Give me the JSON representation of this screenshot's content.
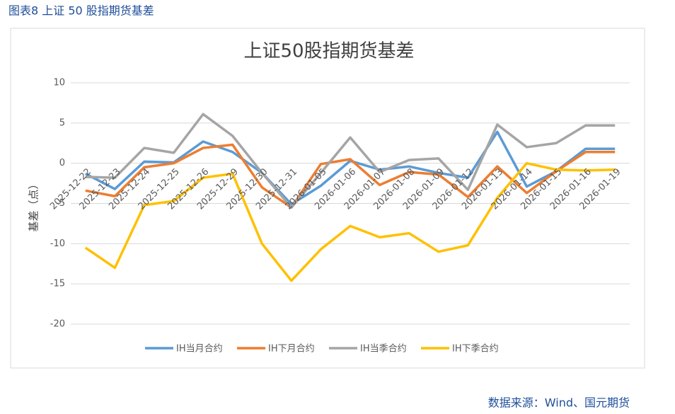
{
  "header": "图表8  上证 50 股指期货基差",
  "source": "数据来源：Wind、国元期货",
  "chart_data": {
    "type": "line",
    "title": "上证50股指期货基差",
    "y_label": "基差（点）",
    "categories": [
      "2025-12-22",
      "2025-12-23",
      "2025-12-24",
      "2025-12-25",
      "2025-12-26",
      "2025-12-29",
      "2025-12-30",
      "2025-12-31",
      "2026-01-05",
      "2026-01-06",
      "2026-01-07",
      "2026-01-08",
      "2026-01-09",
      "2026-01-12",
      "2026-01-13",
      "2026-01-14",
      "2026-01-15",
      "2026-01-16",
      "2026-01-19"
    ],
    "series": [
      {
        "name": "IH当月合约",
        "color": "#5b9bd5",
        "values": [
          -1.3,
          -3.2,
          0.2,
          0.1,
          2.7,
          1.4,
          -1.2,
          -5.1,
          -2.8,
          0.3,
          -0.8,
          -0.4,
          -1.2,
          -1.8,
          3.9,
          -2.9,
          -1.0,
          1.8,
          1.8
        ]
      },
      {
        "name": "IH下月合约",
        "color": "#ed7d31",
        "values": [
          -3.4,
          -4.1,
          -0.5,
          0,
          1.9,
          2.3,
          -3.0,
          -5.5,
          -0.1,
          0.5,
          -2.7,
          -1.1,
          -1.4,
          -4.2,
          -0.4,
          -3.7,
          -1.0,
          1.4,
          1.4
        ]
      },
      {
        "name": "IH当季合约",
        "color": "#a5a5a5",
        "values": [
          -1.7,
          -1.8,
          1.9,
          1.3,
          6.1,
          3.4,
          -1.2,
          -5.5,
          -1.2,
          3.2,
          -1.1,
          0.4,
          0.6,
          -3.3,
          4.8,
          2.0,
          2.5,
          4.7,
          4.7
        ]
      },
      {
        "name": "IH下季合约",
        "color": "#ffc000",
        "values": [
          -10.5,
          -13.0,
          -5.2,
          -4.7,
          -1.8,
          -1.3,
          -10.0,
          -14.6,
          -10.7,
          -7.8,
          -9.2,
          -8.7,
          -11.0,
          -10.2,
          -4.3,
          0,
          -0.8,
          -0.9,
          -0.8
        ]
      }
    ],
    "ylim": [
      -20,
      10
    ],
    "yticks": [
      -20,
      -15,
      -10,
      -5,
      0,
      5,
      10
    ],
    "grid": true,
    "legend": "bottom"
  }
}
